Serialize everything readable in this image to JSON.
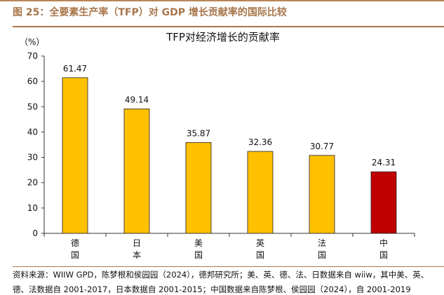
{
  "header": {
    "figure_title": "图 25：全要素生产率（TFP）对 GDP 增长贡献率的国际比较"
  },
  "chart_data": {
    "type": "bar",
    "title": "TFP对经济增长的贡献率",
    "ylabel": "（%）",
    "ylim": [
      0,
      70
    ],
    "yticks": [
      0,
      10,
      20,
      30,
      40,
      50,
      60,
      70
    ],
    "categories": [
      "德国",
      "日本",
      "美国",
      "英国",
      "法国",
      "中国"
    ],
    "values": [
      61.47,
      49.14,
      35.87,
      32.36,
      30.77,
      24.31
    ],
    "data_labels": [
      "61.47",
      "49.14",
      "35.87",
      "32.36",
      "30.77",
      "24.31"
    ],
    "colors": [
      "#FFC000",
      "#FFC000",
      "#FFC000",
      "#FFC000",
      "#FFC000",
      "#C00000"
    ],
    "grid": false,
    "legend": "none"
  },
  "footer": {
    "source_line1": "资料来源：WIIW GPD，陈梦根和侯园园（2024），德邦研究所；美、英、德、法、日数据来自 wiiw，其中美、英、",
    "source_line2": "德、法数据自 2001-2017，日本数据自 2001-2015；中国数据来自陈梦根、侯园园（2024），自 2001-2019"
  }
}
